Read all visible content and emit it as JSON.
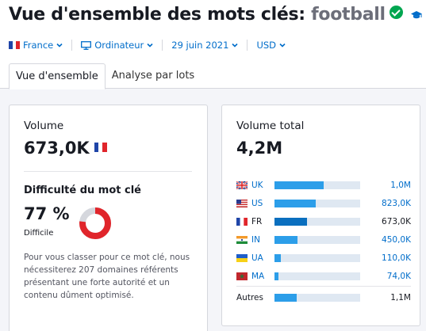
{
  "header": {
    "title_prefix": "Vue d'ensemble des mots clés:",
    "keyword": "football"
  },
  "filters": {
    "database": "France",
    "device": "Ordinateur",
    "date": "29 juin 2021",
    "currency": "USD"
  },
  "tabs": [
    {
      "label": "Vue d'ensemble",
      "active": true
    },
    {
      "label": "Analyse par lots",
      "active": false
    }
  ],
  "volume_card": {
    "volume_label": "Volume",
    "volume_value": "673,0K",
    "difficulty_label": "Difficulté du mot clé",
    "difficulty_value": "77 %",
    "difficulty_level": "Difficile",
    "difficulty_percent": 77,
    "description": "Pour vous classer pour ce mot clé, nous nécessiterez 207 domaines référents présentant une forte autorité et un contenu dûment optimisé."
  },
  "total_card": {
    "label": "Volume total",
    "value": "4,2M",
    "countries": [
      {
        "code": "UK",
        "value": "1,0M",
        "share": 0.24,
        "flag": "uk"
      },
      {
        "code": "US",
        "value": "823,0K",
        "share": 0.2,
        "flag": "us"
      },
      {
        "code": "FR",
        "value": "673,0K",
        "share": 0.16,
        "flag": "fr",
        "current": true
      },
      {
        "code": "IN",
        "value": "450,0K",
        "share": 0.11,
        "flag": "in"
      },
      {
        "code": "UA",
        "value": "110,0K",
        "share": 0.03,
        "flag": "ua"
      },
      {
        "code": "MA",
        "value": "74,0K",
        "share": 0.02,
        "flag": "ma"
      }
    ],
    "others_label": "Autres",
    "others_value": "1,1M",
    "others_share": 0.26
  },
  "colors": {
    "accent": "#006dca",
    "success": "#00a650",
    "difficulty": "#e0252b",
    "bar_fill": "#2c9ee9",
    "bar_track": "#dfe8f2"
  }
}
